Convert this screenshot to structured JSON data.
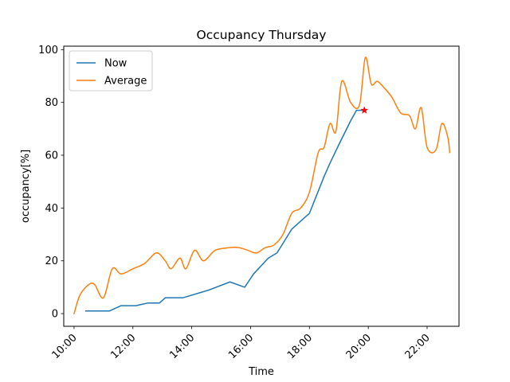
{
  "chart_data": {
    "type": "line",
    "title": "Occupancy Thursday",
    "xlabel": "Time",
    "ylabel": "occupancy[%]",
    "xlim": [
      "09:39",
      "23:05"
    ],
    "ylim": [
      -4.8,
      101.3
    ],
    "x_ticks": [
      "10:00",
      "12:00",
      "14:00",
      "16:00",
      "18:00",
      "20:00",
      "22:00"
    ],
    "y_ticks": [
      0,
      20,
      40,
      60,
      80,
      100
    ],
    "grid": false,
    "legend_position": "top-left",
    "series": [
      {
        "name": "Now",
        "color": "#1f77b4",
        "x": [
          "10:24",
          "10:42",
          "11:00",
          "11:12",
          "11:36",
          "12:06",
          "12:30",
          "12:54",
          "13:06",
          "13:42",
          "14:36",
          "15:18",
          "15:48",
          "16:06",
          "16:36",
          "16:54",
          "17:24",
          "18:00",
          "18:30",
          "18:42",
          "19:00",
          "19:24",
          "19:36",
          "19:54"
        ],
        "values": [
          1,
          1,
          1,
          1,
          3,
          3,
          4,
          4,
          6,
          6,
          9,
          12,
          10,
          15,
          21,
          23,
          32,
          38,
          52,
          57,
          64,
          73,
          77,
          77
        ]
      },
      {
        "name": "Average",
        "color": "#ff7f0e",
        "x": [
          "10:00",
          "10:12",
          "10:30",
          "10:42",
          "11:00",
          "11:18",
          "11:36",
          "12:00",
          "12:24",
          "12:48",
          "13:06",
          "13:18",
          "13:36",
          "13:48",
          "14:06",
          "14:24",
          "14:48",
          "15:18",
          "15:36",
          "15:54",
          "16:12",
          "16:30",
          "16:48",
          "17:06",
          "17:24",
          "17:42",
          "18:00",
          "18:18",
          "18:30",
          "18:42",
          "18:54",
          "19:06",
          "19:24",
          "19:42",
          "19:54",
          "20:06",
          "20:18",
          "20:30",
          "20:48",
          "21:06",
          "21:24",
          "21:36",
          "21:48",
          "22:00",
          "22:18",
          "22:30",
          "22:42",
          "22:46"
        ],
        "values": [
          0,
          7,
          11,
          11,
          6,
          17,
          15,
          17,
          19,
          23,
          20,
          17,
          21,
          17,
          24,
          20,
          24,
          25,
          25,
          24,
          23,
          25,
          26,
          30,
          38,
          40,
          46,
          61,
          63,
          72,
          69,
          88,
          80,
          79,
          97,
          87,
          88,
          86,
          82,
          76,
          75,
          70,
          78,
          63,
          62,
          72,
          67,
          61
        ]
      }
    ],
    "markers": [
      {
        "x": "19:52",
        "y": 77,
        "shape": "star",
        "color": "#ff0000"
      }
    ]
  }
}
